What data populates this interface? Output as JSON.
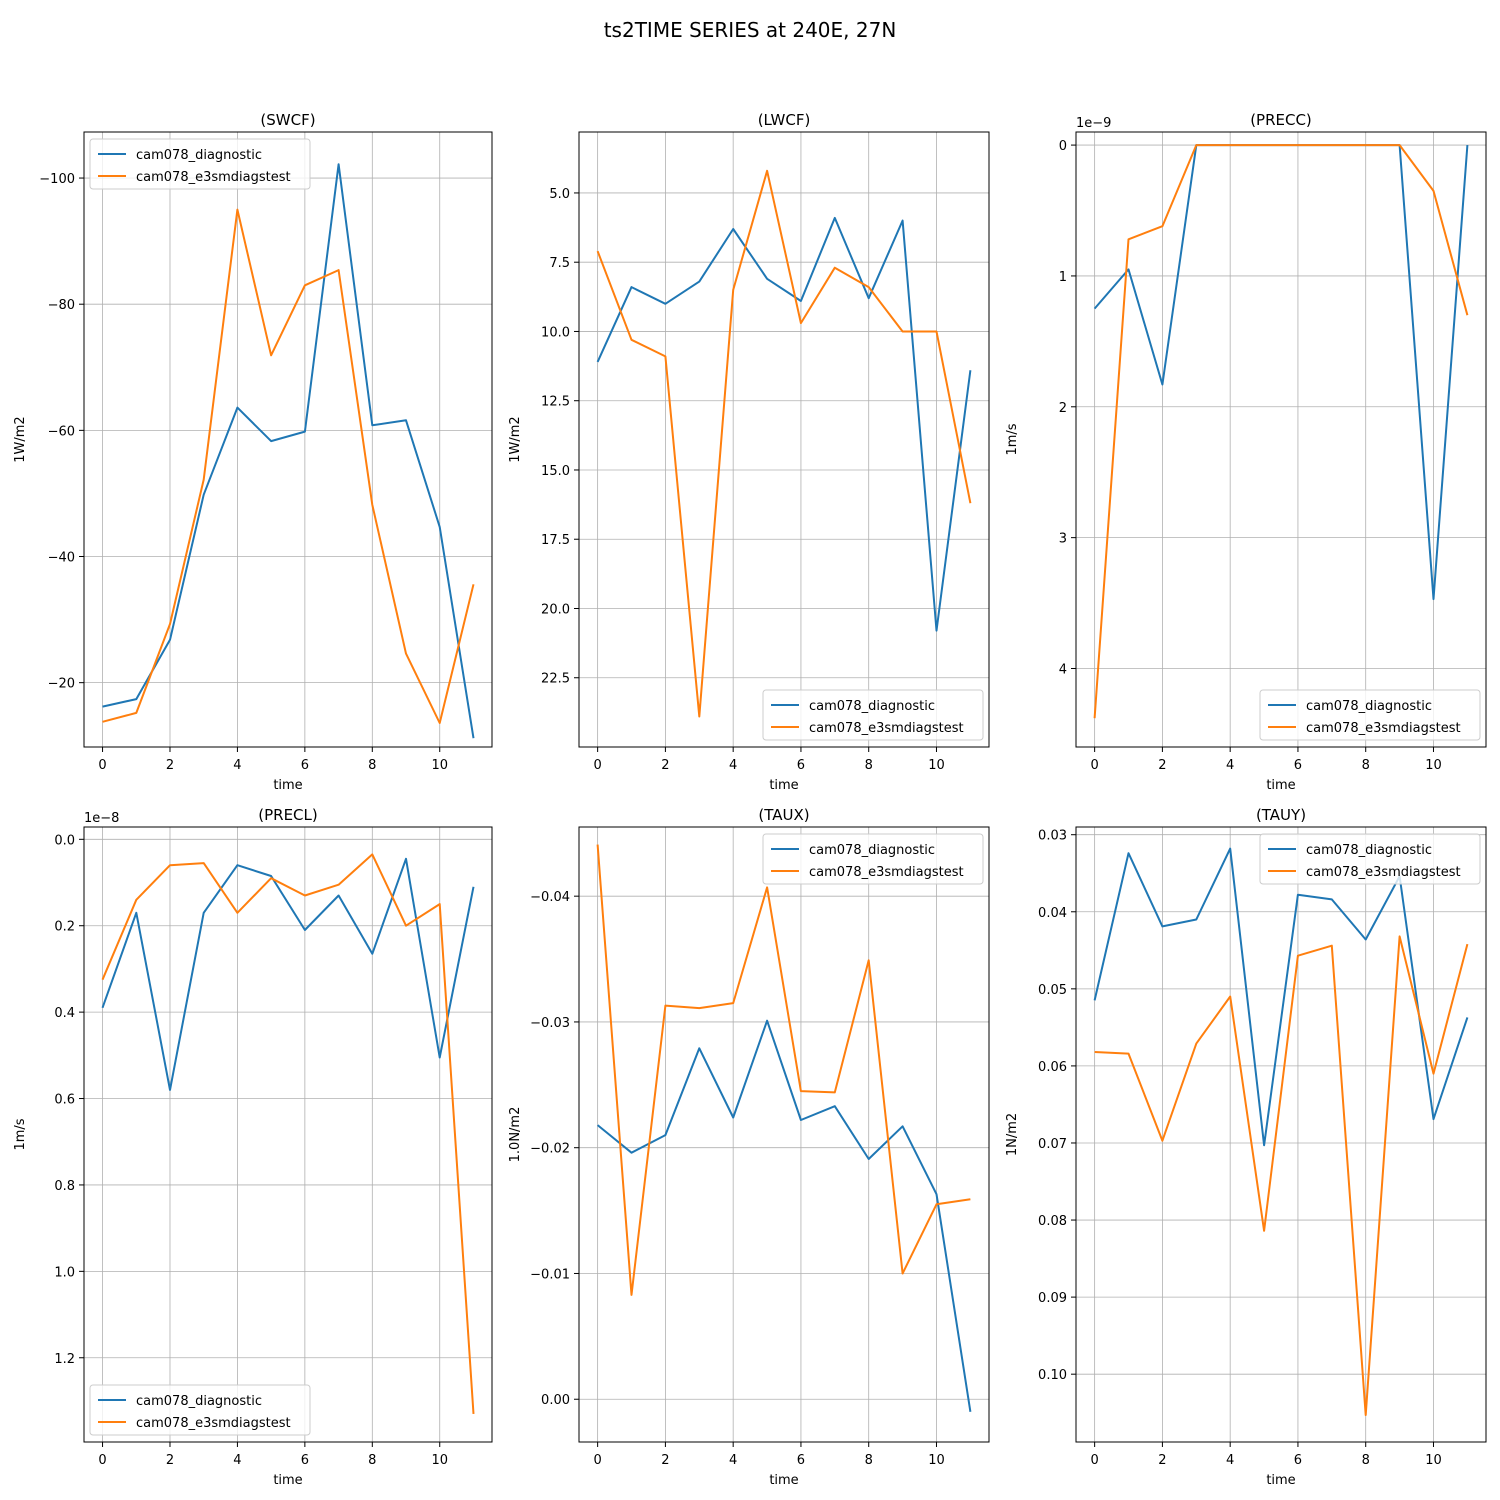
{
  "figure_title": "ts2TIME SERIES at 240E, 27N",
  "colors": {
    "cam078_diagnostic": "#1f77b4",
    "cam078_e3smdiagstest": "#ff7f0e"
  },
  "chart_data": [
    {
      "type": "line",
      "title": "(SWCF)",
      "xlabel": "time",
      "ylabel": "1W/m2",
      "offset_text": "",
      "x": [
        0,
        1,
        2,
        3,
        4,
        5,
        6,
        7,
        8,
        9,
        10,
        11
      ],
      "xlim": [
        -0.55,
        11.55
      ],
      "xticks": [
        0,
        2,
        4,
        6,
        8,
        10
      ],
      "ylim": [
        -9.8,
        -107.3
      ],
      "inverted_y": true,
      "yticks": [
        -20,
        -40,
        -60,
        -80,
        -100
      ],
      "ytick_labels": [
        "−20",
        "−40",
        "−60",
        "−80",
        "−100"
      ],
      "grid": true,
      "legend_loc": "top-left",
      "series": [
        {
          "name": "cam078_diagnostic",
          "values": [
            -16.2,
            -17.4,
            -26.8,
            -49.8,
            -63.6,
            -58.3,
            -59.8,
            -102.2,
            -60.8,
            -61.6,
            -44.7,
            -11.2
          ]
        },
        {
          "name": "cam078_e3smdiagstest",
          "values": [
            -13.8,
            -15.2,
            -29.3,
            -52.2,
            -95.0,
            -71.9,
            -83.0,
            -85.4,
            -48.2,
            -24.6,
            -13.6,
            -35.6
          ]
        }
      ]
    },
    {
      "type": "line",
      "title": "(LWCF)",
      "xlabel": "time",
      "ylabel": "1W/m2",
      "offset_text": "",
      "x": [
        0,
        1,
        2,
        3,
        4,
        5,
        6,
        7,
        8,
        9,
        10,
        11
      ],
      "xlim": [
        -0.55,
        11.55
      ],
      "xticks": [
        0,
        2,
        4,
        6,
        8,
        10
      ],
      "ylim": [
        25.0,
        2.8
      ],
      "inverted_y": true,
      "yticks": [
        5.0,
        7.5,
        10.0,
        12.5,
        15.0,
        17.5,
        20.0,
        22.5
      ],
      "ytick_labels": [
        "5.0",
        "7.5",
        "10.0",
        "12.5",
        "15.0",
        "17.5",
        "20.0",
        "22.5"
      ],
      "grid": true,
      "legend_loc": "bottom-right",
      "series": [
        {
          "name": "cam078_diagnostic",
          "values": [
            11.1,
            8.4,
            9.0,
            8.2,
            6.3,
            8.1,
            8.9,
            5.9,
            8.8,
            6.0,
            20.8,
            11.4
          ]
        },
        {
          "name": "cam078_e3smdiagstest",
          "values": [
            7.1,
            10.3,
            10.9,
            23.9,
            8.5,
            4.2,
            9.7,
            7.7,
            8.4,
            10.0,
            10.0,
            16.2
          ]
        }
      ]
    },
    {
      "type": "line",
      "title": "(PRECC)",
      "xlabel": "time",
      "ylabel": "1m/s",
      "offset_text": "1e−9",
      "x": [
        0,
        1,
        2,
        3,
        4,
        5,
        6,
        7,
        8,
        9,
        10,
        11
      ],
      "xlim": [
        -0.55,
        11.55
      ],
      "xticks": [
        0,
        2,
        4,
        6,
        8,
        10
      ],
      "ylim": [
        4.6,
        -0.1
      ],
      "inverted_y": true,
      "yticks": [
        0,
        1,
        2,
        3,
        4
      ],
      "ytick_labels": [
        "0",
        "1",
        "2",
        "3",
        "4"
      ],
      "grid": true,
      "legend_loc": "bottom-right",
      "series": [
        {
          "name": "cam078_diagnostic",
          "values": [
            1.25,
            0.95,
            1.83,
            0,
            0,
            0,
            0,
            0,
            0,
            0,
            3.47,
            0
          ]
        },
        {
          "name": "cam078_e3smdiagstest",
          "values": [
            4.38,
            0.72,
            0.62,
            0,
            0,
            0,
            0,
            0,
            0,
            0,
            0.35,
            1.3
          ]
        }
      ]
    },
    {
      "type": "line",
      "title": "(PRECL)",
      "xlabel": "time",
      "ylabel": "1m/s",
      "offset_text": "1e−8",
      "x": [
        0,
        1,
        2,
        3,
        4,
        5,
        6,
        7,
        8,
        9,
        10,
        11
      ],
      "xlim": [
        -0.55,
        11.55
      ],
      "xticks": [
        0,
        2,
        4,
        6,
        8,
        10
      ],
      "ylim": [
        1.395,
        -0.0285
      ],
      "inverted_y": true,
      "yticks": [
        0.0,
        0.2,
        0.4,
        0.6,
        0.8,
        1.0,
        1.2
      ],
      "ytick_labels": [
        "0.0",
        "0.2",
        "0.4",
        "0.6",
        "0.8",
        "1.0",
        "1.2"
      ],
      "grid": true,
      "legend_loc": "bottom-left",
      "series": [
        {
          "name": "cam078_diagnostic",
          "values": [
            0.39,
            0.17,
            0.58,
            0.17,
            0.06,
            0.085,
            0.21,
            0.13,
            0.265,
            0.045,
            0.505,
            0.11
          ]
        },
        {
          "name": "cam078_e3smdiagstest",
          "values": [
            0.325,
            0.14,
            0.06,
            0.055,
            0.17,
            0.09,
            0.13,
            0.105,
            0.035,
            0.2,
            0.15,
            1.33
          ]
        }
      ]
    },
    {
      "type": "line",
      "title": "(TAUX)",
      "xlabel": "time",
      "ylabel": "1.0N/m2",
      "offset_text": "",
      "x": [
        0,
        1,
        2,
        3,
        4,
        5,
        6,
        7,
        8,
        9,
        10,
        11
      ],
      "xlim": [
        -0.55,
        11.55
      ],
      "xticks": [
        0,
        2,
        4,
        6,
        8,
        10
      ],
      "ylim": [
        0.0034,
        -0.0455
      ],
      "inverted_y": true,
      "yticks": [
        0.0,
        -0.01,
        -0.02,
        -0.03,
        -0.04
      ],
      "ytick_labels": [
        "0.00",
        "−0.01",
        "−0.02",
        "−0.03",
        "−0.04"
      ],
      "grid": true,
      "legend_loc": "top-right",
      "series": [
        {
          "name": "cam078_diagnostic",
          "values": [
            -0.0218,
            -0.0196,
            -0.021,
            -0.0279,
            -0.0224,
            -0.0301,
            -0.0222,
            -0.0233,
            -0.0191,
            -0.0217,
            -0.0163,
            0.001
          ]
        },
        {
          "name": "cam078_e3smdiagstest",
          "values": [
            -0.0441,
            -0.0083,
            -0.0313,
            -0.0311,
            -0.0315,
            -0.0407,
            -0.0245,
            -0.0244,
            -0.0349,
            -0.01,
            -0.0155,
            -0.0159
          ]
        }
      ]
    },
    {
      "type": "line",
      "title": "(TAUY)",
      "xlabel": "time",
      "ylabel": "1N/m2",
      "offset_text": "",
      "x": [
        0,
        1,
        2,
        3,
        4,
        5,
        6,
        7,
        8,
        9,
        10,
        11
      ],
      "xlim": [
        -0.55,
        11.55
      ],
      "xticks": [
        0,
        2,
        4,
        6,
        8,
        10
      ],
      "ylim": [
        0.1088,
        0.029
      ],
      "inverted_y": true,
      "yticks": [
        0.03,
        0.04,
        0.05,
        0.06,
        0.07,
        0.08,
        0.09,
        0.1
      ],
      "ytick_labels": [
        "0.03",
        "0.04",
        "0.05",
        "0.06",
        "0.07",
        "0.08",
        "0.09",
        "0.10"
      ],
      "grid": true,
      "legend_loc": "top-right",
      "series": [
        {
          "name": "cam078_diagnostic",
          "values": [
            0.0515,
            0.0324,
            0.0419,
            0.041,
            0.0318,
            0.0703,
            0.0378,
            0.0384,
            0.0436,
            0.0354,
            0.0669,
            0.0537
          ]
        },
        {
          "name": "cam078_e3smdiagstest",
          "values": [
            0.0582,
            0.0584,
            0.0697,
            0.0571,
            0.051,
            0.0814,
            0.0457,
            0.0444,
            0.1053,
            0.0432,
            0.061,
            0.0442
          ]
        }
      ]
    }
  ]
}
